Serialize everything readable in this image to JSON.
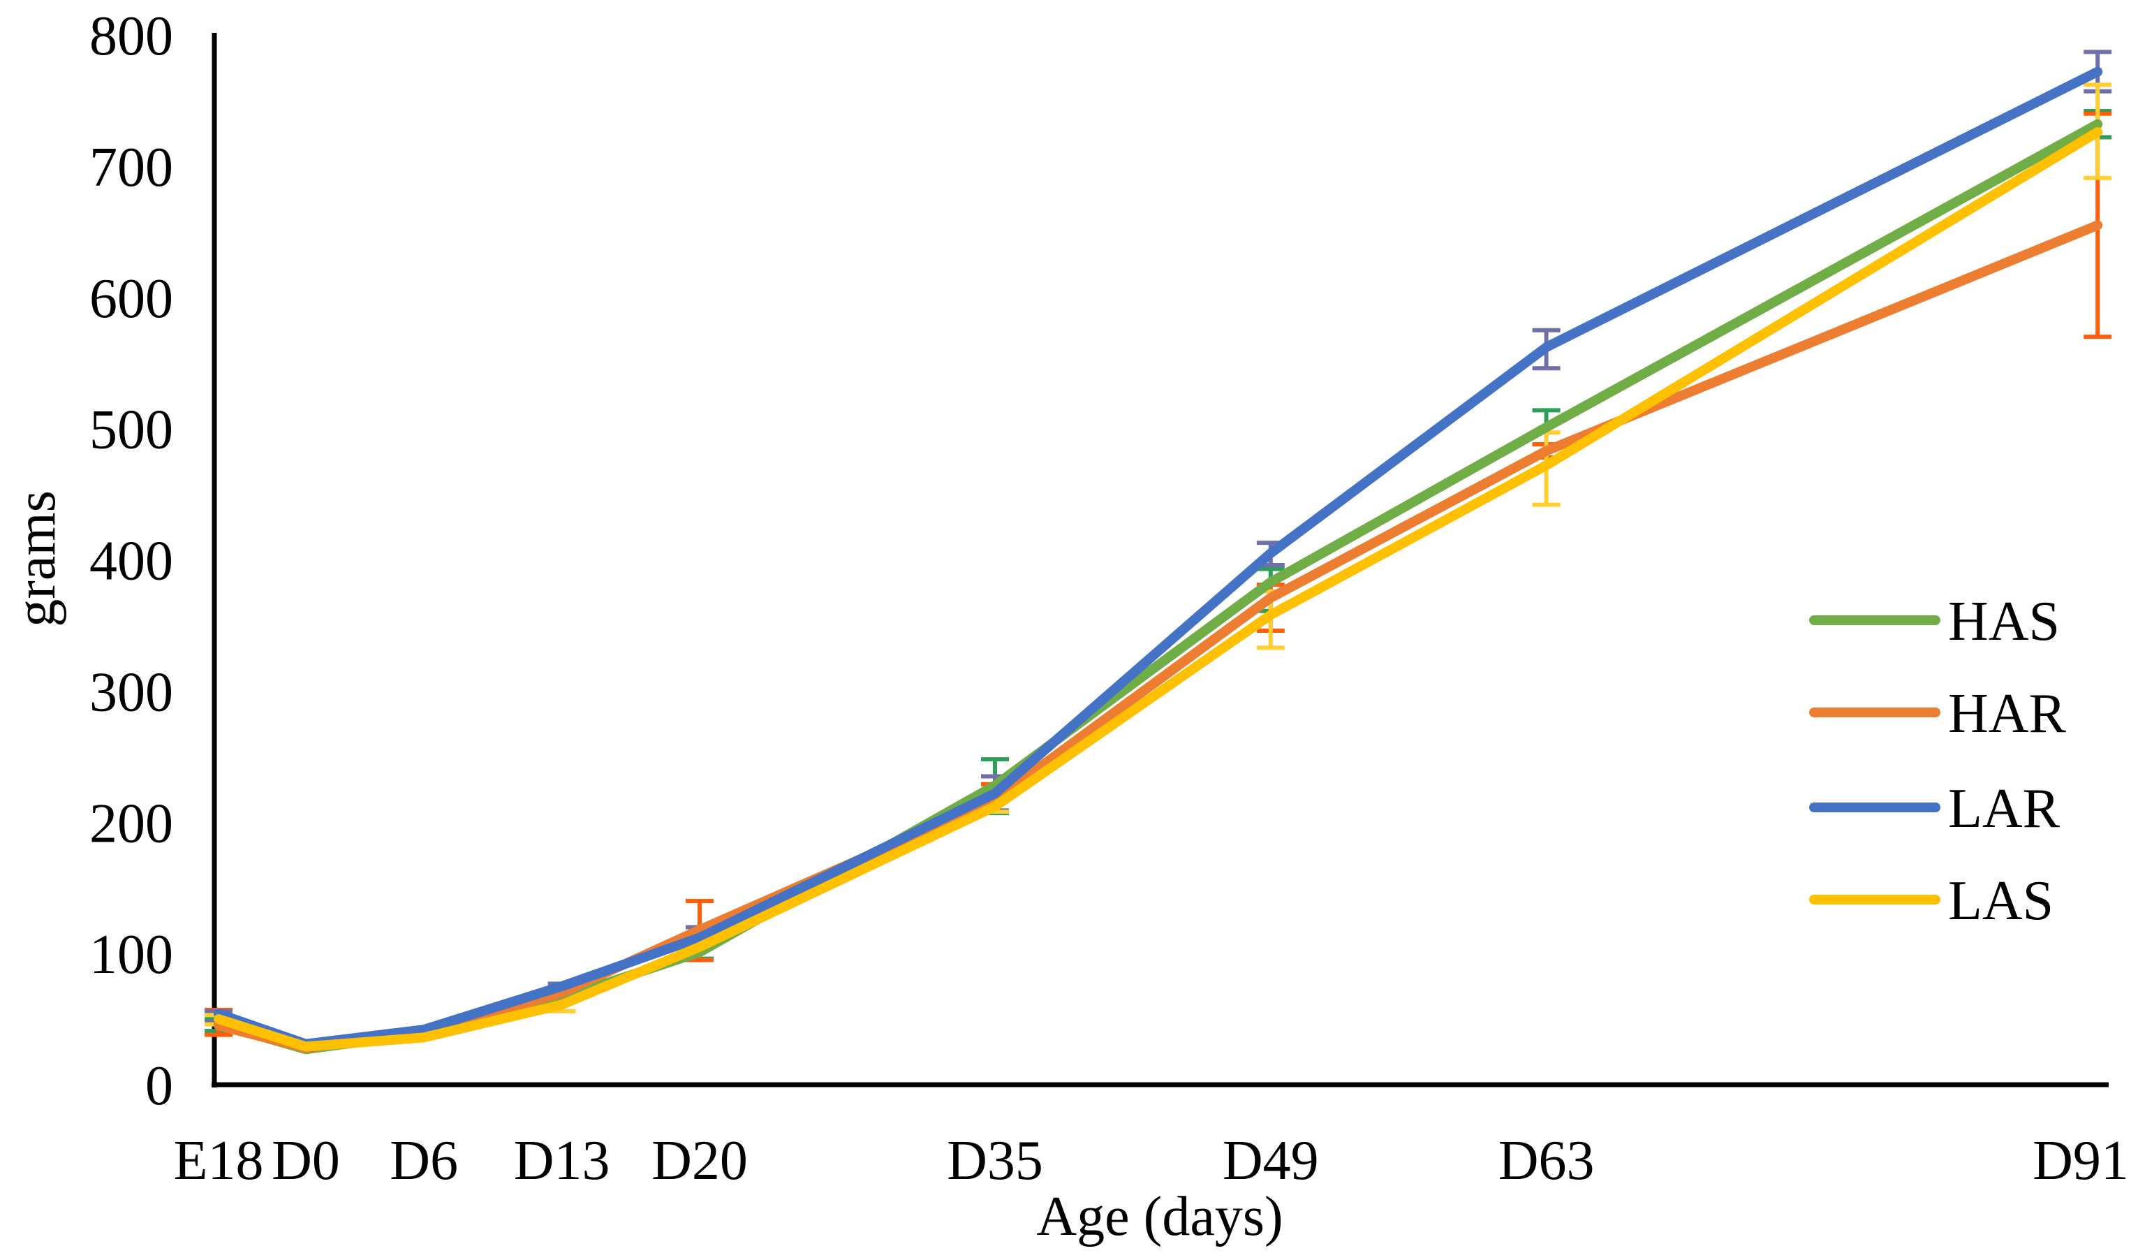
{
  "chart_data": {
    "type": "line",
    "title": "",
    "xlabel": "Age (days)",
    "ylabel": "grams",
    "x_tick_labels": [
      "E18",
      "D0",
      "D6",
      "D13",
      "D20",
      "D35",
      "D49",
      "D63",
      "D91"
    ],
    "x_days": [
      -4.43,
      0,
      6,
      13,
      20,
      35,
      49,
      63,
      91
    ],
    "yticks": [
      0,
      100,
      200,
      300,
      400,
      500,
      600,
      700,
      800
    ],
    "ylim": [
      0,
      800
    ],
    "grid": false,
    "legend_position": "right-middle",
    "axis_color": "#000000",
    "text_color": "#000000",
    "series": [
      {
        "name": "HAS",
        "color": "#70ad47",
        "error_color": "#2e9e5a",
        "values": [
          46,
          27,
          39,
          66,
          101,
          228,
          383,
          501,
          732
        ],
        "error_lo": [
          41,
          null,
          null,
          null,
          96,
          207,
          361,
          488,
          722
        ],
        "error_hi": [
          51,
          null,
          null,
          null,
          106,
          248,
          393,
          514,
          742
        ]
      },
      {
        "name": "HAR",
        "color": "#ed7d31",
        "error_color": "#ff5e0d",
        "values": [
          45,
          28,
          40,
          70,
          118,
          217,
          371,
          483,
          655
        ],
        "error_lo": [
          38,
          null,
          null,
          null,
          95,
          209,
          346,
          478,
          570
        ],
        "error_hi": [
          57,
          null,
          null,
          null,
          140,
          229,
          381,
          488,
          740
        ]
      },
      {
        "name": "LAR",
        "color": "#4472c4",
        "error_color": "#7070a8",
        "values": [
          54,
          31,
          42,
          75,
          112,
          222,
          405,
          562,
          772
        ],
        "error_lo": [
          48,
          null,
          null,
          72,
          104,
          209,
          396,
          546,
          757
        ],
        "error_hi": [
          56,
          null,
          null,
          77,
          120,
          235,
          413,
          575,
          787
        ]
      },
      {
        "name": "LAS",
        "color": "#ffc000",
        "error_color": "#ffce33",
        "values": [
          50,
          29,
          36,
          61,
          105,
          212,
          358,
          472,
          726
        ],
        "error_lo": [
          46,
          null,
          null,
          56,
          null,
          208,
          333,
          442,
          691
        ],
        "error_hi": [
          53,
          null,
          null,
          66,
          null,
          222,
          376,
          497,
          762
        ]
      }
    ],
    "legend_items": [
      "HAS",
      "HAR",
      "LAR",
      "LAS"
    ]
  }
}
